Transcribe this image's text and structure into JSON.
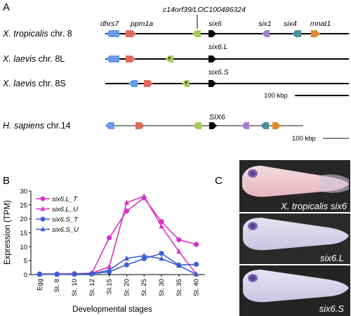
{
  "panels": {
    "a": "A",
    "b": "B",
    "c": "C"
  },
  "synteny": {
    "genes_top": [
      "dhrs7",
      "ppm1a",
      "c14orf39/LOC100486324",
      "six6",
      "six1",
      "six4",
      "mnat1"
    ],
    "rows": [
      {
        "species": "X. tropicalis",
        "chrom": "chr. 8"
      },
      {
        "species": "X. laevis",
        "chrom": "chr. 8L",
        "gene": "six6.L"
      },
      {
        "species": "X. laevis",
        "chrom": "chr. 8S",
        "gene": "six6.S"
      },
      {
        "species": "H. sapiens",
        "chrom": "chr.14",
        "gene": "SIX6"
      }
    ],
    "pseudogene_mark": "*",
    "scale_label": "100 kbp",
    "colors": {
      "dhrs7": "#6a9ae8",
      "ppm1a": "#e06a5c",
      "c14orf39": "#a3cc5a",
      "six6": "#000000",
      "six1": "#a77fcf",
      "six4": "#4f8fa0",
      "mnat1": "#e08a2a",
      "xenopus_line": "#000000",
      "human_line": "#888888"
    }
  },
  "chart_data": {
    "type": "line",
    "xlabel": "Developmental stages",
    "ylabel": "Expression (TPM)",
    "ylim": [
      0,
      30
    ],
    "yticks": [
      0,
      5,
      10,
      15,
      20,
      25,
      30
    ],
    "categories": [
      "Egg",
      "St. 8",
      "St. 10",
      "St. 12",
      "St.15",
      "St. 20",
      "St. 25",
      "St. 30",
      "St. 35",
      "St. 40"
    ],
    "legend_position": "top-left",
    "series": [
      {
        "name": "six6.L_T",
        "color": "#d633c4",
        "marker": "circle",
        "values": [
          0.2,
          0.2,
          0.3,
          0.4,
          13.2,
          22.8,
          27.5,
          19.0,
          12.5,
          10.8
        ]
      },
      {
        "name": "six6.L_U",
        "color": "#d633c4",
        "marker": "triangle",
        "values": [
          0.2,
          0.2,
          0.3,
          0.5,
          2.8,
          25.8,
          28.1,
          17.3,
          8.3,
          0.2
        ]
      },
      {
        "name": "six6.S_T",
        "color": "#3a5fd6",
        "marker": "circle",
        "values": [
          0.1,
          0.1,
          0.2,
          0.3,
          1.0,
          3.5,
          5.7,
          7.6,
          3.4,
          3.7
        ]
      },
      {
        "name": "six6.S_U",
        "color": "#3a5fd6",
        "marker": "triangle",
        "values": [
          0.1,
          0.1,
          0.2,
          0.3,
          1.6,
          5.8,
          6.8,
          5.7,
          3.2,
          0.1
        ]
      }
    ]
  },
  "photos": {
    "labels": [
      "X. tropicalis six6",
      "six6.L",
      "six6.S"
    ]
  }
}
